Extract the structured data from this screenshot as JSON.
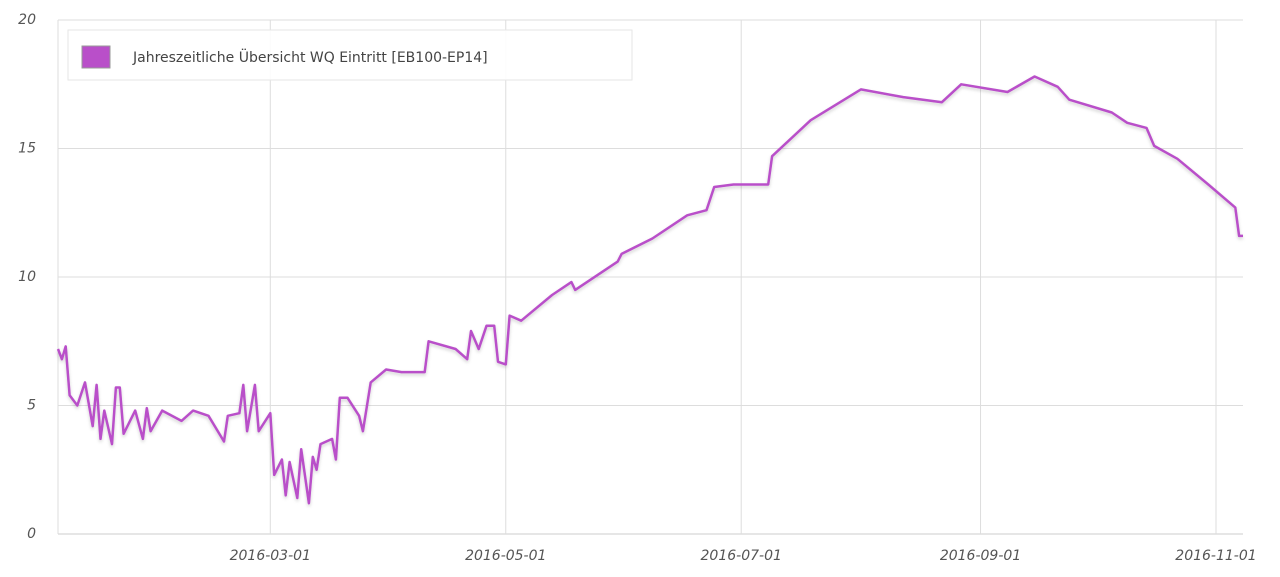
{
  "chart_data": {
    "type": "line",
    "x": [
      "2016-01-06",
      "2016-01-07",
      "2016-01-08",
      "2016-01-09",
      "2016-01-11",
      "2016-01-13",
      "2016-01-15",
      "2016-01-16",
      "2016-01-17",
      "2016-01-18",
      "2016-01-20",
      "2016-01-21",
      "2016-01-22",
      "2016-01-23",
      "2016-01-26",
      "2016-01-28",
      "2016-01-29",
      "2016-01-30",
      "2016-02-02",
      "2016-02-07",
      "2016-02-10",
      "2016-02-14",
      "2016-02-18",
      "2016-02-19",
      "2016-02-22",
      "2016-02-23",
      "2016-02-24",
      "2016-02-26",
      "2016-02-27",
      "2016-03-01",
      "2016-03-02",
      "2016-03-04",
      "2016-03-05",
      "2016-03-06",
      "2016-03-08",
      "2016-03-09",
      "2016-03-11",
      "2016-03-12",
      "2016-03-13",
      "2016-03-14",
      "2016-03-17",
      "2016-03-18",
      "2016-03-19",
      "2016-03-21",
      "2016-03-24",
      "2016-03-25",
      "2016-03-27",
      "2016-03-31",
      "2016-04-04",
      "2016-04-10",
      "2016-04-11",
      "2016-04-18",
      "2016-04-21",
      "2016-04-22",
      "2016-04-24",
      "2016-04-26",
      "2016-04-28",
      "2016-04-29",
      "2016-05-01",
      "2016-05-02",
      "2016-05-05",
      "2016-05-13",
      "2016-05-18",
      "2016-05-19",
      "2016-05-30",
      "2016-05-31",
      "2016-06-08",
      "2016-06-17",
      "2016-06-22",
      "2016-06-24",
      "2016-06-29",
      "2016-07-08",
      "2016-07-09",
      "2016-07-19",
      "2016-08-01",
      "2016-08-12",
      "2016-08-22",
      "2016-08-27",
      "2016-09-08",
      "2016-09-15",
      "2016-09-21",
      "2016-09-24",
      "2016-10-05",
      "2016-10-09",
      "2016-10-14",
      "2016-10-16",
      "2016-10-22",
      "2016-10-30",
      "2016-11-06",
      "2016-11-07",
      "2016-11-08"
    ],
    "series": [
      {
        "name": "Jahreszeitliche Übersicht WQ Eintritt [EB100-EP14]",
        "color": "#b94fc9",
        "values": [
          7.2,
          6.8,
          7.3,
          5.4,
          5.0,
          5.9,
          4.2,
          5.8,
          3.7,
          4.8,
          3.5,
          5.7,
          5.7,
          3.9,
          4.8,
          3.7,
          4.9,
          4.0,
          4.8,
          4.4,
          4.8,
          4.6,
          3.6,
          4.6,
          4.7,
          5.8,
          4.0,
          5.8,
          4.0,
          4.7,
          2.3,
          2.9,
          1.5,
          2.8,
          1.4,
          3.3,
          1.2,
          3.0,
          2.5,
          3.5,
          3.7,
          2.9,
          5.3,
          5.3,
          4.6,
          4.0,
          5.9,
          6.4,
          6.3,
          6.3,
          7.5,
          7.2,
          6.8,
          7.9,
          7.2,
          8.1,
          8.1,
          6.7,
          6.6,
          8.5,
          8.3,
          9.3,
          9.8,
          9.5,
          10.6,
          10.9,
          11.5,
          12.4,
          12.6,
          13.5,
          13.6,
          13.6,
          14.7,
          16.1,
          17.3,
          17.0,
          16.8,
          17.5,
          17.2,
          17.8,
          17.4,
          16.9,
          16.4,
          16.0,
          15.8,
          15.1,
          14.6,
          13.6,
          12.7,
          11.6,
          11.6
        ]
      }
    ],
    "xlim": [
      "2016-01-06",
      "2016-11-08"
    ],
    "xticks": [
      "2016-03-01",
      "2016-05-01",
      "2016-07-01",
      "2016-09-01",
      "2016-11-01"
    ],
    "ylim": [
      0,
      20
    ],
    "yticks": [
      0,
      5,
      10,
      15,
      20
    ],
    "grid": true,
    "legend": "top-left"
  }
}
